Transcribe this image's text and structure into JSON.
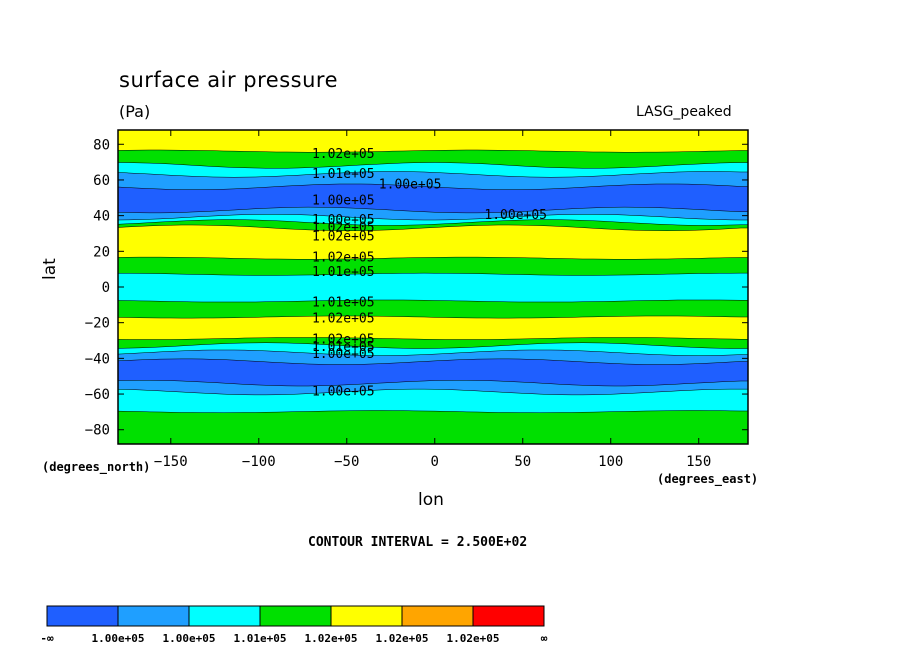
{
  "chart_data": {
    "type": "heatmap",
    "title": "surface air pressure",
    "units_label": "(Pa)",
    "dataset_label": "LASG_peaked",
    "xlabel": "lon",
    "ylabel": "lat",
    "x_units": "(degrees_east)",
    "y_units": "(degrees_north)",
    "xlim": [
      -180,
      178
    ],
    "ylim": [
      -88,
      88
    ],
    "xticks": [
      -150,
      -100,
      -50,
      0,
      50,
      100,
      150
    ],
    "yticks": [
      -80,
      -60,
      -40,
      -20,
      0,
      20,
      40,
      60,
      80
    ],
    "contour_interval_text": "CONTOUR INTERVAL = 2.500E+02",
    "levels": {
      "colors": [
        "#1f5fff",
        "#1f9fff",
        "#00ffff",
        "#00e000",
        "#ffff00",
        "#ffa500",
        "#ff0000"
      ],
      "labels": [
        "-∞",
        "1.00e+05",
        "1.00e+05",
        "1.01e+05",
        "1.02e+05",
        "1.02e+05",
        "1.02e+05",
        "∞"
      ]
    },
    "bands": [
      {
        "lat_from": 88,
        "lat_to": 76,
        "level": 4
      },
      {
        "lat_from": 76,
        "lat_to": 68,
        "level": 3
      },
      {
        "lat_from": 68,
        "lat_to": 63,
        "level": 2
      },
      {
        "lat_from": 63,
        "lat_to": 56,
        "level": 1
      },
      {
        "lat_from": 56,
        "lat_to": 43,
        "level": 0
      },
      {
        "lat_from": 43,
        "lat_to": 39,
        "level": 1
      },
      {
        "lat_from": 39,
        "lat_to": 36,
        "level": 2
      },
      {
        "lat_from": 36,
        "lat_to": 33,
        "level": 3
      },
      {
        "lat_from": 33,
        "lat_to": 16,
        "level": 4
      },
      {
        "lat_from": 16,
        "lat_to": 7,
        "level": 3
      },
      {
        "lat_from": 7,
        "lat_to": -8,
        "level": 2
      },
      {
        "lat_from": -8,
        "lat_to": -17,
        "level": 3
      },
      {
        "lat_from": -17,
        "lat_to": -29,
        "level": 4
      },
      {
        "lat_from": -29,
        "lat_to": -33,
        "level": 3
      },
      {
        "lat_from": -33,
        "lat_to": -37,
        "level": 2
      },
      {
        "lat_from": -37,
        "lat_to": -42,
        "level": 1
      },
      {
        "lat_from": -42,
        "lat_to": -54,
        "level": 0
      },
      {
        "lat_from": -54,
        "lat_to": -59,
        "level": 1
      },
      {
        "lat_from": -59,
        "lat_to": -70,
        "level": 2
      },
      {
        "lat_from": -70,
        "lat_to": -88,
        "level": 3
      }
    ],
    "contour_labels": [
      {
        "text": "1.02e+05",
        "lon": -52,
        "lat": 75
      },
      {
        "text": "1.01e+05",
        "lon": -52,
        "lat": 64
      },
      {
        "text": "1.00e+05",
        "lon": -14,
        "lat": 58
      },
      {
        "text": "1.00e+05",
        "lon": -52,
        "lat": 49
      },
      {
        "text": "1.00e+05",
        "lon": 46,
        "lat": 41
      },
      {
        "text": "1.00e+05",
        "lon": -52,
        "lat": 38
      },
      {
        "text": "1.02e+05",
        "lon": -52,
        "lat": 34
      },
      {
        "text": "1.02e+05",
        "lon": -52,
        "lat": 29
      },
      {
        "text": "1.02e+05",
        "lon": -52,
        "lat": 17
      },
      {
        "text": "1.01e+05",
        "lon": -52,
        "lat": 9
      },
      {
        "text": "1.01e+05",
        "lon": -52,
        "lat": -8
      },
      {
        "text": "1.02e+05",
        "lon": -52,
        "lat": -17
      },
      {
        "text": "1.02e+05",
        "lon": -52,
        "lat": -29
      },
      {
        "text": "1.01e+05",
        "lon": -52,
        "lat": -33
      },
      {
        "text": "1.00e+05",
        "lon": -52,
        "lat": -37
      },
      {
        "text": "1.00e+05",
        "lon": -52,
        "lat": -58
      }
    ]
  }
}
